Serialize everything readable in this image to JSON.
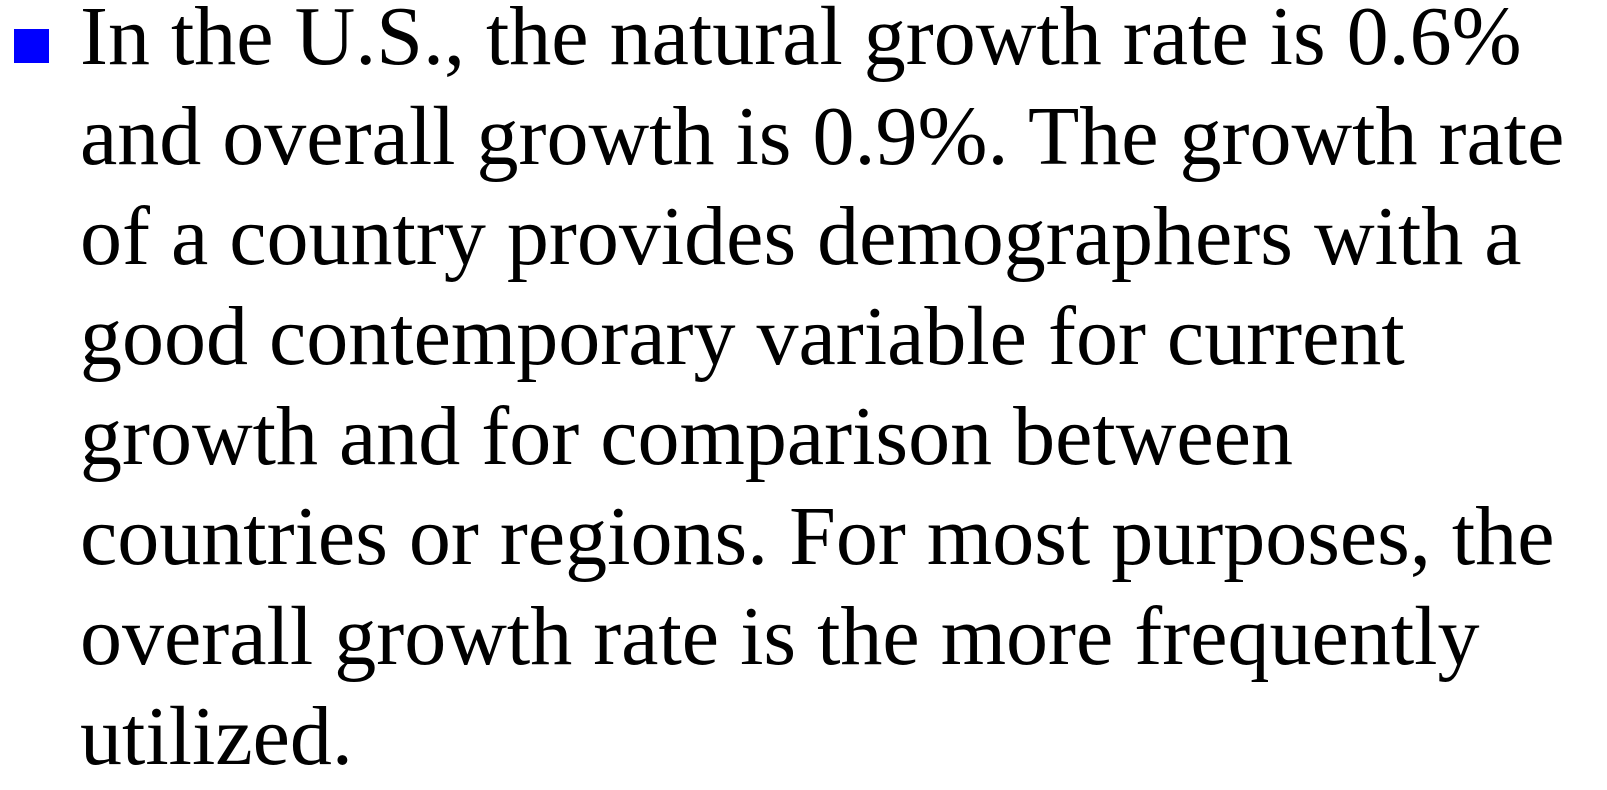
{
  "bullet": {
    "lines": [
      "In the U.S., the natural growth rate is 0.6%",
      "and overall growth is 0.9%. The growth rate",
      "of a country provides demographers with a",
      "good contemporary variable for current",
      "growth and for comparison between",
      "countries or regions. For most purposes, the",
      "overall growth rate is the more frequently",
      "utilized."
    ]
  }
}
